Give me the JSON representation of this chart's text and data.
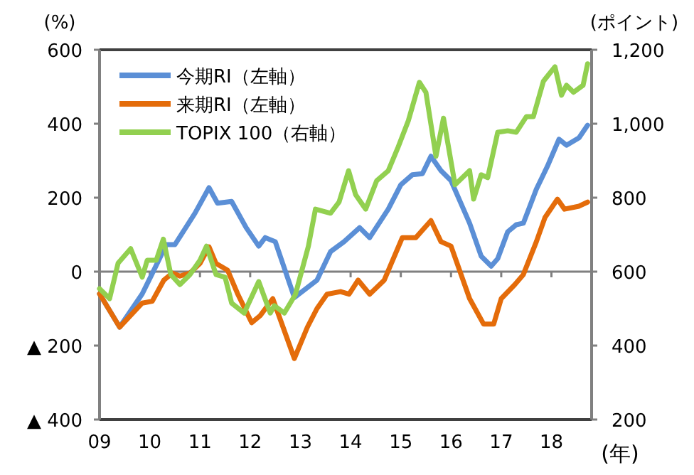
{
  "chart_data": {
    "type": "line",
    "ylabel": "(%)",
    "y2label": "(ポイント)",
    "xlabel": "(年)",
    "xlim": [
      2009,
      2018.8
    ],
    "xticks": [
      {
        "value": 2009,
        "label": "09"
      },
      {
        "value": 2010,
        "label": "10"
      },
      {
        "value": 2011,
        "label": "11"
      },
      {
        "value": 2012,
        "label": "12"
      },
      {
        "value": 2013,
        "label": "13"
      },
      {
        "value": 2014,
        "label": "14"
      },
      {
        "value": 2015,
        "label": "15"
      },
      {
        "value": 2016,
        "label": "16"
      },
      {
        "value": 2017,
        "label": "17"
      },
      {
        "value": 2018,
        "label": "18"
      }
    ],
    "ylim": [
      -400,
      600
    ],
    "yticks": [
      {
        "value": -400,
        "label": "▲ 400"
      },
      {
        "value": -200,
        "label": "▲ 200"
      },
      0,
      200,
      400,
      600
    ],
    "y2lim": [
      200,
      1200
    ],
    "y2ticks": [
      200,
      400,
      600,
      800,
      {
        "value": 1000,
        "label": "1,000"
      },
      {
        "value": 1200,
        "label": "1,200"
      }
    ],
    "ref_lines": [
      {
        "axis": "y",
        "value": 0,
        "color": "#808080"
      }
    ],
    "legend": "top left",
    "marker": "none",
    "line_style": "solid",
    "series": [
      {
        "name": "今期RI（左軸）",
        "color": "#5b8fd6",
        "x": [
          2009.0,
          2009.4,
          2009.85,
          2010.05,
          2010.33,
          2010.5,
          2010.9,
          2011.18,
          2011.35,
          2011.63,
          2011.92,
          2012.17,
          2012.3,
          2012.5,
          2012.88,
          2013.33,
          2013.6,
          2013.87,
          2014.18,
          2014.38,
          2014.75,
          2015.0,
          2015.23,
          2015.43,
          2015.6,
          2015.8,
          2016.0,
          2016.37,
          2016.6,
          2016.8,
          2016.93,
          2017.13,
          2017.3,
          2017.44,
          2017.7,
          2017.92,
          2018.15,
          2018.3,
          2018.55,
          2018.72
        ],
        "values": [
          -60,
          -150,
          -60,
          -5,
          73,
          73,
          158,
          227,
          185,
          190,
          119,
          69,
          92,
          81,
          -70,
          -23,
          54,
          81,
          119,
          92,
          169,
          235,
          262,
          265,
          312,
          273,
          246,
          131,
          42,
          15,
          35,
          108,
          127,
          131,
          223,
          285,
          358,
          342,
          362,
          396
        ]
      },
      {
        "name": "来期RI（左軸）",
        "color": "#e46c0a",
        "x": [
          2009.0,
          2009.4,
          2009.85,
          2010.05,
          2010.28,
          2010.45,
          2010.6,
          2010.8,
          2011.0,
          2011.18,
          2011.32,
          2011.55,
          2011.75,
          2012.03,
          2012.2,
          2012.45,
          2012.88,
          2013.14,
          2013.33,
          2013.53,
          2013.8,
          2013.97,
          2014.15,
          2014.38,
          2014.67,
          2015.03,
          2015.3,
          2015.6,
          2015.8,
          2016.0,
          2016.37,
          2016.65,
          2016.85,
          2017.0,
          2017.27,
          2017.44,
          2017.7,
          2017.87,
          2018.12,
          2018.26,
          2018.55,
          2018.72
        ],
        "values": [
          -60,
          -150,
          -85,
          -80,
          -23,
          -4,
          -12,
          -4,
          22,
          67,
          22,
          4,
          -60,
          -138,
          -119,
          -73,
          -235,
          -150,
          -100,
          -61,
          -54,
          -61,
          -23,
          -61,
          -23,
          92,
          92,
          138,
          81,
          69,
          -73,
          -142,
          -142,
          -73,
          -35,
          -8,
          81,
          146,
          196,
          169,
          177,
          188
        ]
      },
      {
        "name": "TOPIX 100（右軸）",
        "color": "#92d050",
        "axis": "y2",
        "x": [
          2009.0,
          2009.2,
          2009.37,
          2009.62,
          2009.85,
          2009.95,
          2010.13,
          2010.27,
          2010.42,
          2010.6,
          2010.8,
          2011.0,
          2011.13,
          2011.32,
          2011.5,
          2011.63,
          2011.88,
          2012.17,
          2012.4,
          2012.48,
          2012.68,
          2012.9,
          2013.16,
          2013.3,
          2013.6,
          2013.77,
          2013.96,
          2014.1,
          2014.3,
          2014.52,
          2014.75,
          2014.95,
          2015.15,
          2015.37,
          2015.5,
          2015.7,
          2015.85,
          2016.08,
          2016.37,
          2016.45,
          2016.6,
          2016.73,
          2016.93,
          2017.13,
          2017.3,
          2017.5,
          2017.64,
          2017.84,
          2018.07,
          2018.2,
          2018.3,
          2018.44,
          2018.63,
          2018.72
        ],
        "values": [
          554,
          527,
          623,
          662,
          585,
          631,
          631,
          688,
          592,
          565,
          592,
          631,
          669,
          592,
          585,
          515,
          488,
          573,
          488,
          508,
          488,
          538,
          669,
          769,
          758,
          788,
          873,
          808,
          769,
          846,
          873,
          938,
          1008,
          1112,
          1085,
          912,
          1015,
          835,
          873,
          796,
          862,
          854,
          977,
          981,
          977,
          1019,
          1019,
          1115,
          1154,
          1077,
          1104,
          1085,
          1104,
          1162
        ]
      }
    ]
  }
}
